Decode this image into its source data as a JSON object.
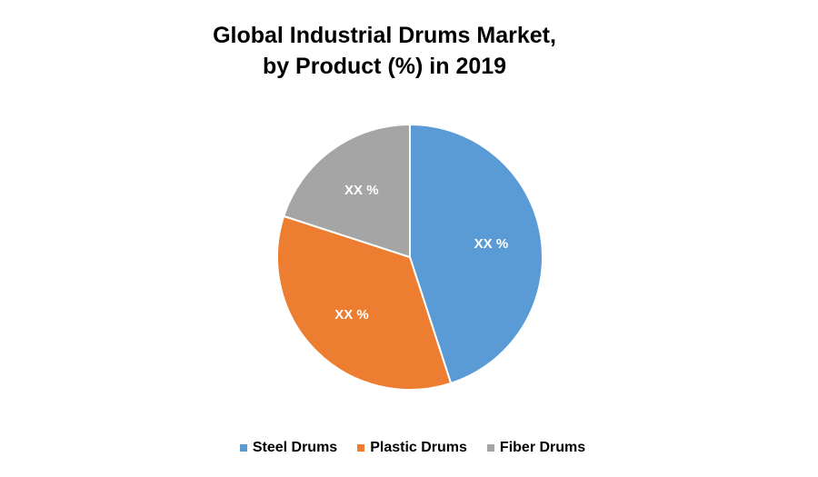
{
  "chart_data": {
    "type": "pie",
    "title": [
      "Global Industrial Drums Market,",
      "by Product (%) in 2019"
    ],
    "categories": [
      "Steel Drums",
      "Plastic Drums",
      "Fiber Drums"
    ],
    "values": [
      45,
      35,
      20
    ],
    "data_labels": [
      "XX %",
      "XX %",
      "XX %"
    ],
    "colors": [
      "#5b9bd5",
      "#ed7d31",
      "#a5a5a5"
    ],
    "start_angle_deg": 0,
    "direction": "clockwise",
    "legend": "bottom"
  }
}
